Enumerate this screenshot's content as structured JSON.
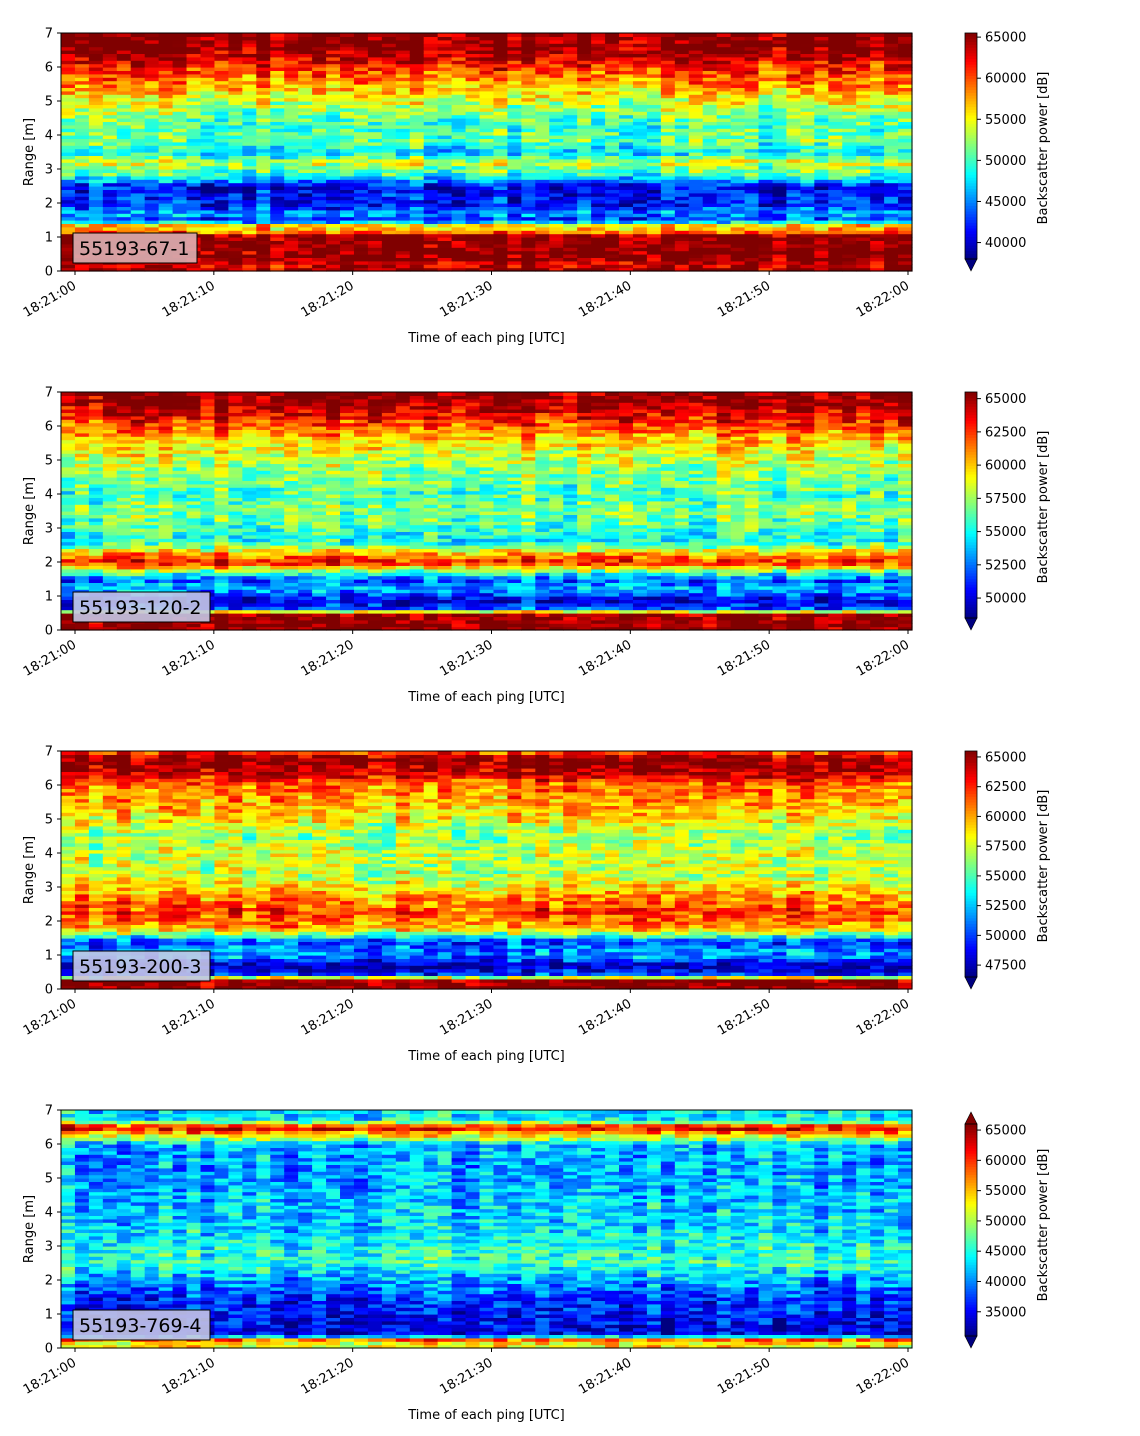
{
  "chart_data": [
    {
      "type": "heatmap",
      "label": "55193-67-1",
      "label_box_color": "#dcb0b4",
      "xlabel": "Time of each ping [UTC]",
      "ylabel": "Range [m]",
      "x_ticks": [
        "18:21:00",
        "18:21:10",
        "18:21:20",
        "18:21:30",
        "18:21:40",
        "18:21:50",
        "18:22:00"
      ],
      "y_ticks": [
        0,
        1,
        2,
        3,
        4,
        5,
        6,
        7
      ],
      "xlim": [
        "18:21:00",
        "18:22:00"
      ],
      "ylim": [
        0,
        7
      ],
      "colormap": "jet",
      "colorbar": {
        "label": "Backscatter power [dB]",
        "ticks": [
          40000,
          45000,
          50000,
          55000,
          60000,
          65000
        ],
        "vmin": 38000,
        "vmax": 65500,
        "extend": "min"
      },
      "range_profile": [
        {
          "range": 0.0,
          "value": 65500
        },
        {
          "range": 0.2,
          "value": 62500
        },
        {
          "range": 0.3,
          "value": 65500
        },
        {
          "range": 1.1,
          "value": 65500
        },
        {
          "range": 1.2,
          "value": 53000
        },
        {
          "range": 1.3,
          "value": 60500
        },
        {
          "range": 1.5,
          "value": 42500
        },
        {
          "range": 1.7,
          "value": 46000
        },
        {
          "range": 1.9,
          "value": 42000
        },
        {
          "range": 2.5,
          "value": 41000
        },
        {
          "range": 2.8,
          "value": 49000
        },
        {
          "range": 3.2,
          "value": 54000
        },
        {
          "range": 3.5,
          "value": 47000
        },
        {
          "range": 3.8,
          "value": 51000
        },
        {
          "range": 4.3,
          "value": 50000
        },
        {
          "range": 5.0,
          "value": 54000
        },
        {
          "range": 5.5,
          "value": 58000
        },
        {
          "range": 6.0,
          "value": 61000
        },
        {
          "range": 6.3,
          "value": 64000
        },
        {
          "range": 6.6,
          "value": 65500
        },
        {
          "range": 7.0,
          "value": 65500
        }
      ]
    },
    {
      "type": "heatmap",
      "label": "55193-120-2",
      "label_box_color": "#c4c6e6",
      "xlabel": "Time of each ping [UTC]",
      "ylabel": "Range [m]",
      "x_ticks": [
        "18:21:00",
        "18:21:10",
        "18:21:20",
        "18:21:30",
        "18:21:40",
        "18:21:50",
        "18:22:00"
      ],
      "y_ticks": [
        0,
        1,
        2,
        3,
        4,
        5,
        6,
        7
      ],
      "xlim": [
        "18:21:00",
        "18:22:00"
      ],
      "ylim": [
        0,
        7
      ],
      "colormap": "jet",
      "colorbar": {
        "label": "Backscatter power [dB]",
        "ticks": [
          50000,
          52500,
          55000,
          57500,
          60000,
          62500,
          65000
        ],
        "vmin": 48500,
        "vmax": 65500,
        "extend": "min"
      },
      "range_profile": [
        {
          "range": 0.0,
          "value": 65500
        },
        {
          "range": 0.5,
          "value": 65500
        },
        {
          "range": 0.6,
          "value": 52000
        },
        {
          "range": 0.9,
          "value": 50000
        },
        {
          "range": 1.2,
          "value": 54000
        },
        {
          "range": 1.5,
          "value": 52000
        },
        {
          "range": 1.8,
          "value": 58500
        },
        {
          "range": 2.0,
          "value": 63500
        },
        {
          "range": 2.3,
          "value": 60000
        },
        {
          "range": 2.6,
          "value": 55000
        },
        {
          "range": 3.0,
          "value": 56000
        },
        {
          "range": 3.5,
          "value": 57000
        },
        {
          "range": 4.0,
          "value": 56000
        },
        {
          "range": 4.5,
          "value": 57000
        },
        {
          "range": 5.0,
          "value": 58000
        },
        {
          "range": 5.5,
          "value": 59500
        },
        {
          "range": 6.0,
          "value": 62000
        },
        {
          "range": 6.5,
          "value": 64500
        },
        {
          "range": 7.0,
          "value": 65500
        }
      ]
    },
    {
      "type": "heatmap",
      "label": "55193-200-3",
      "label_box_color": "#c4c6e6",
      "xlabel": "Time of each ping [UTC]",
      "ylabel": "Range [m]",
      "x_ticks": [
        "18:21:00",
        "18:21:10",
        "18:21:20",
        "18:21:30",
        "18:21:40",
        "18:21:50",
        "18:22:00"
      ],
      "y_ticks": [
        0,
        1,
        2,
        3,
        4,
        5,
        6,
        7
      ],
      "xlim": [
        "18:21:00",
        "18:22:00"
      ],
      "ylim": [
        0,
        7
      ],
      "colormap": "jet",
      "colorbar": {
        "label": "Backscatter power [dB]",
        "ticks": [
          47500,
          50000,
          52500,
          55000,
          57500,
          60000,
          62500,
          65000
        ],
        "vmin": 46500,
        "vmax": 65500,
        "extend": "min"
      },
      "range_profile": [
        {
          "range": 0.0,
          "value": 65500
        },
        {
          "range": 0.3,
          "value": 65500
        },
        {
          "range": 0.4,
          "value": 50000
        },
        {
          "range": 0.7,
          "value": 47500
        },
        {
          "range": 1.0,
          "value": 52000
        },
        {
          "range": 1.4,
          "value": 50000
        },
        {
          "range": 1.8,
          "value": 60000
        },
        {
          "range": 2.3,
          "value": 62000
        },
        {
          "range": 2.8,
          "value": 60000
        },
        {
          "range": 3.3,
          "value": 57000
        },
        {
          "range": 4.0,
          "value": 57500
        },
        {
          "range": 4.5,
          "value": 56000
        },
        {
          "range": 5.0,
          "value": 58500
        },
        {
          "range": 5.5,
          "value": 60000
        },
        {
          "range": 6.0,
          "value": 61000
        },
        {
          "range": 6.4,
          "value": 64500
        },
        {
          "range": 6.8,
          "value": 65500
        },
        {
          "range": 7.0,
          "value": 61000
        }
      ]
    },
    {
      "type": "heatmap",
      "label": "55193-769-4",
      "label_box_color": "#c4c6e6",
      "xlabel": "Time of each ping [UTC]",
      "ylabel": "Range [m]",
      "x_ticks": [
        "18:21:00",
        "18:21:10",
        "18:21:20",
        "18:21:30",
        "18:21:40",
        "18:21:50",
        "18:22:00"
      ],
      "y_ticks": [
        0,
        1,
        2,
        3,
        4,
        5,
        6,
        7
      ],
      "xlim": [
        "18:21:00",
        "18:22:00"
      ],
      "ylim": [
        0,
        7
      ],
      "colormap": "jet",
      "colorbar": {
        "label": "Backscatter power [dB]",
        "ticks": [
          35000,
          40000,
          45000,
          50000,
          55000,
          60000,
          65000
        ],
        "vmin": 31000,
        "vmax": 66000,
        "extend": "both"
      },
      "range_profile": [
        {
          "range": 0.0,
          "value": 66000
        },
        {
          "range": 0.1,
          "value": 40000
        },
        {
          "range": 0.2,
          "value": 66000
        },
        {
          "range": 0.3,
          "value": 50000
        },
        {
          "range": 0.4,
          "value": 34000
        },
        {
          "range": 0.9,
          "value": 35000
        },
        {
          "range": 1.5,
          "value": 37000
        },
        {
          "range": 2.0,
          "value": 41000
        },
        {
          "range": 2.5,
          "value": 46000
        },
        {
          "range": 3.0,
          "value": 45000
        },
        {
          "range": 3.5,
          "value": 43000
        },
        {
          "range": 4.5,
          "value": 42000
        },
        {
          "range": 5.5,
          "value": 41000
        },
        {
          "range": 6.0,
          "value": 42000
        },
        {
          "range": 6.3,
          "value": 55000
        },
        {
          "range": 6.5,
          "value": 64000
        },
        {
          "range": 6.7,
          "value": 44000
        },
        {
          "range": 7.0,
          "value": 43000
        }
      ]
    }
  ]
}
